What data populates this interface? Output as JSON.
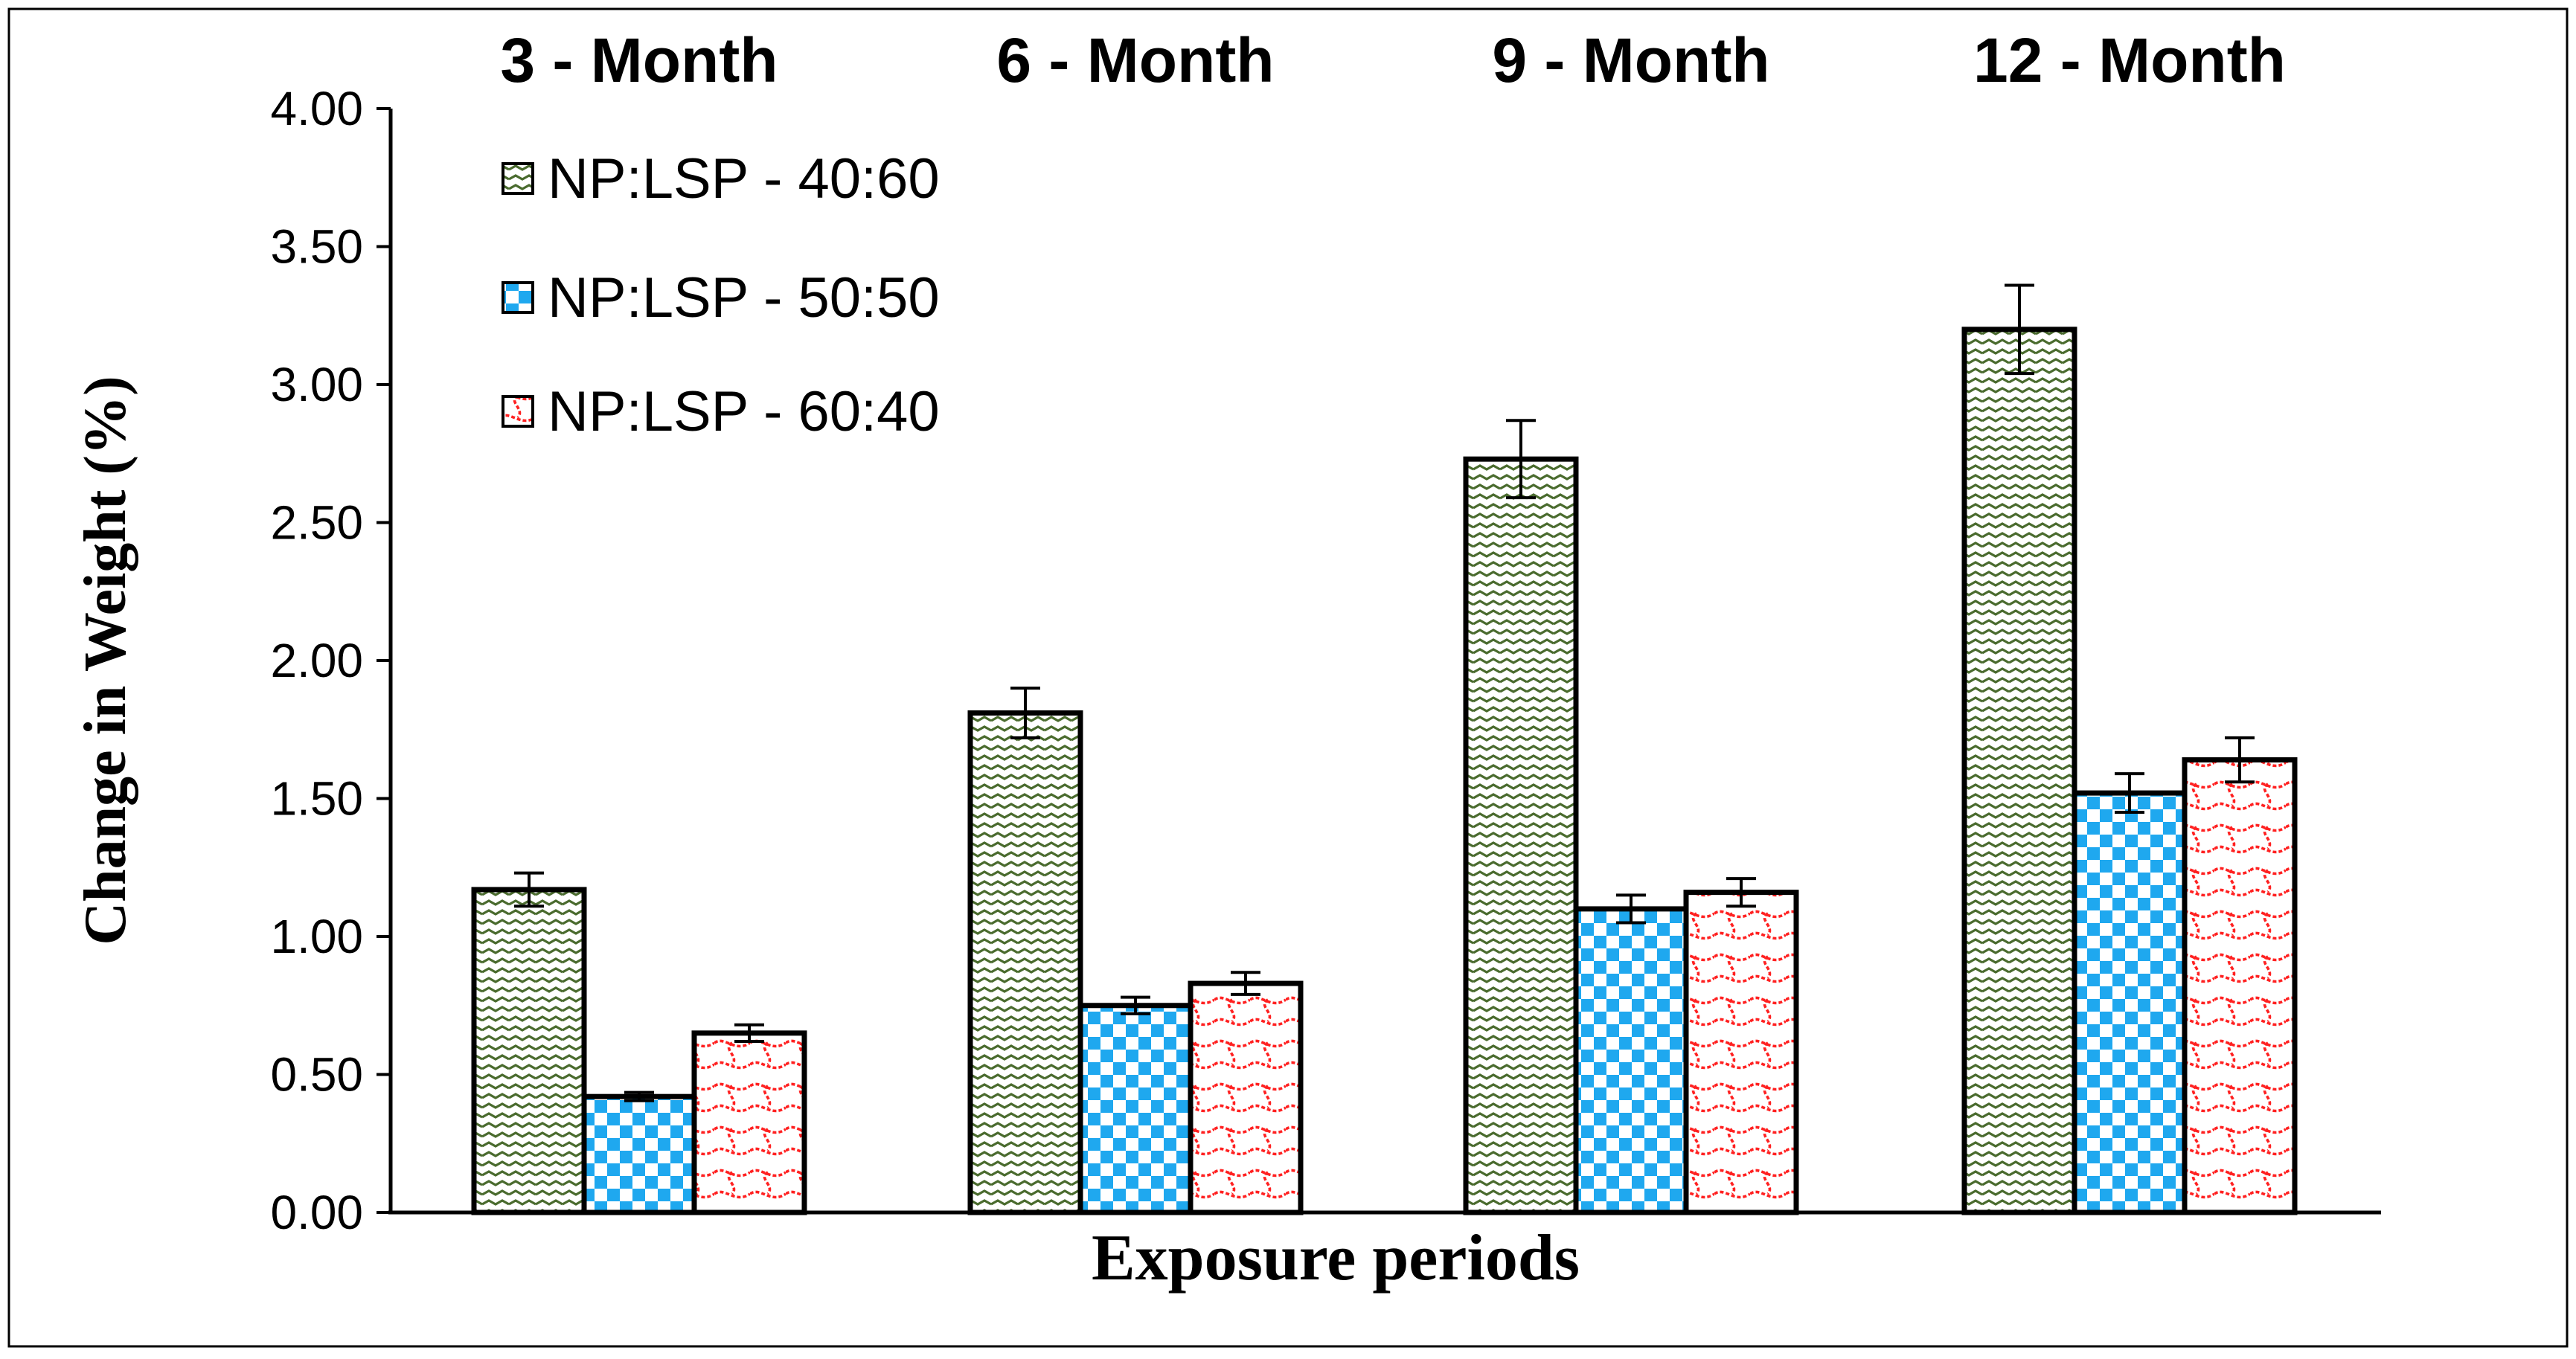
{
  "chart_data": {
    "type": "bar",
    "title": "",
    "xlabel": "Exposure periods",
    "ylabel": "Change in Weight (%)",
    "ylim": [
      0,
      4
    ],
    "yticks": [
      "0.00",
      "0.50",
      "1.00",
      "1.50",
      "2.00",
      "2.50",
      "3.00",
      "3.50",
      "4.00"
    ],
    "categories": [
      "3 - Month",
      "6 - Month",
      "9 - Month",
      "12 - Month"
    ],
    "legend_position": "top-left",
    "grid": false,
    "series": [
      {
        "name": "NP:LSP - 40:60",
        "pattern": "zigzag",
        "color": "#4a6b2e",
        "values": [
          1.17,
          1.81,
          2.73,
          3.2
        ],
        "errors": [
          0.06,
          0.09,
          0.14,
          0.16
        ]
      },
      {
        "name": "NP:LSP - 50:50",
        "pattern": "checker",
        "color": "#1fa8ef",
        "values": [
          0.42,
          0.75,
          1.1,
          1.52
        ],
        "errors": [
          0.015,
          0.03,
          0.05,
          0.07
        ]
      },
      {
        "name": "NP:LSP - 60:40",
        "pattern": "waves",
        "color": "#ff2020",
        "values": [
          0.65,
          0.83,
          1.16,
          1.64
        ],
        "errors": [
          0.03,
          0.04,
          0.05,
          0.08
        ]
      }
    ]
  }
}
